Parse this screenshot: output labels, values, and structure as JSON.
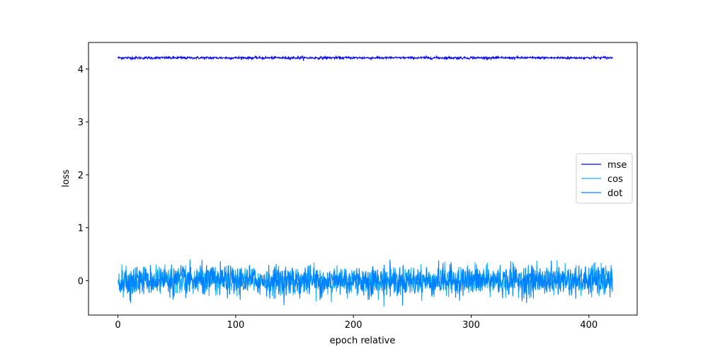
{
  "chart_data": {
    "type": "line",
    "title": "",
    "xlabel": "epoch relative",
    "ylabel": "loss",
    "xlim": [
      -25,
      441
    ],
    "ylim": [
      -0.65,
      4.5
    ],
    "xticks": [
      0,
      100,
      200,
      300,
      400
    ],
    "yticks": [
      0,
      1,
      2,
      3,
      4
    ],
    "xtick_labels": [
      "0",
      "100",
      "200",
      "300",
      "400"
    ],
    "ytick_labels": [
      "0",
      "1",
      "2",
      "3",
      "4"
    ],
    "grid": false,
    "legend_position": "center-right",
    "x_range": [
      0,
      420
    ],
    "series": [
      {
        "name": "mse",
        "color": "#0000ff",
        "approx_mean": 4.21,
        "approx_noise": 0.012
      },
      {
        "name": "cos",
        "color": "#1ab2ff",
        "approx_mean": 0.0,
        "approx_noise": 0.13
      },
      {
        "name": "dot",
        "color": "#0080ff",
        "approx_mean": 0.0,
        "approx_noise": 0.14
      }
    ]
  }
}
